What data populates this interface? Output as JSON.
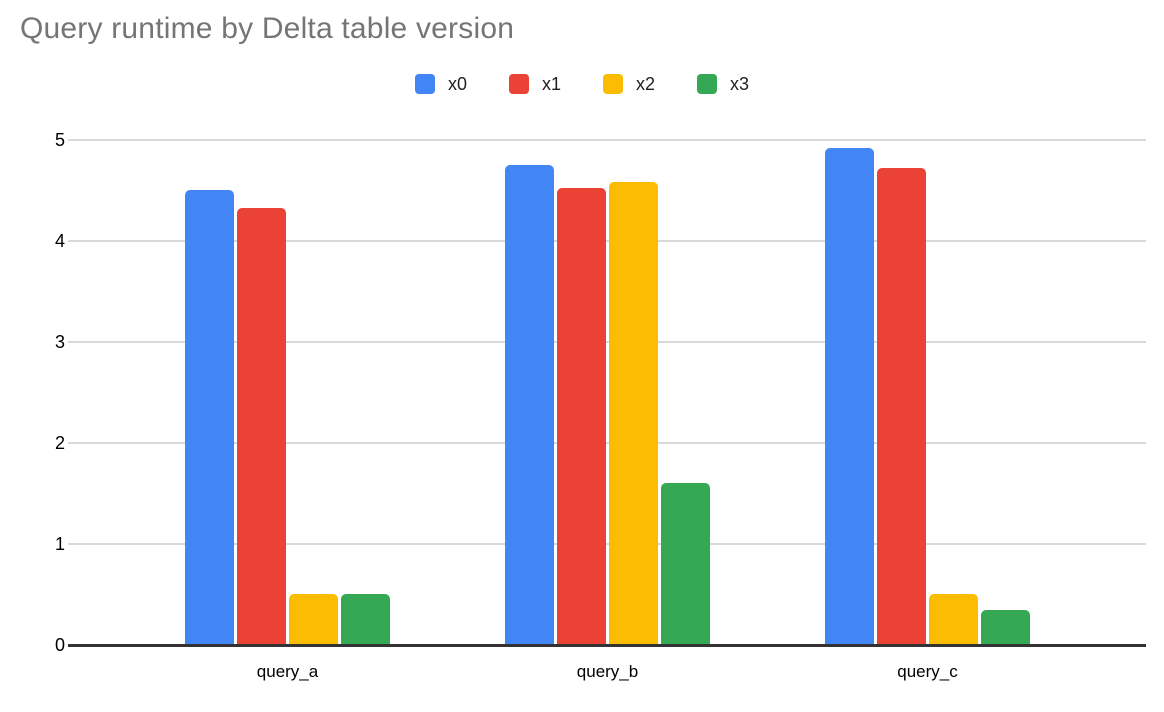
{
  "chart_data": {
    "type": "bar",
    "title": "Query runtime by Delta table version",
    "categories": [
      "query_a",
      "query_b",
      "query_c"
    ],
    "series": [
      {
        "name": "x0",
        "color": "#4285F4",
        "values": [
          4.5,
          4.75,
          4.92
        ]
      },
      {
        "name": "x1",
        "color": "#EA4335",
        "values": [
          4.33,
          4.52,
          4.72
        ]
      },
      {
        "name": "x2",
        "color": "#FBBC04",
        "values": [
          0.5,
          4.58,
          0.5
        ]
      },
      {
        "name": "x3",
        "color": "#34A853",
        "values": [
          0.5,
          1.6,
          0.35
        ]
      }
    ],
    "xlabel": "",
    "ylabel": "",
    "ylim": [
      0,
      5
    ],
    "yticks": [
      0,
      1,
      2,
      3,
      4,
      5
    ],
    "grid": true,
    "legend_position": "top",
    "title_color": "#757575",
    "axis_line_color": "#333333",
    "gridline_color": "#d9d9d9",
    "tick_label_color": "#000000",
    "background_color": "#ffffff"
  }
}
